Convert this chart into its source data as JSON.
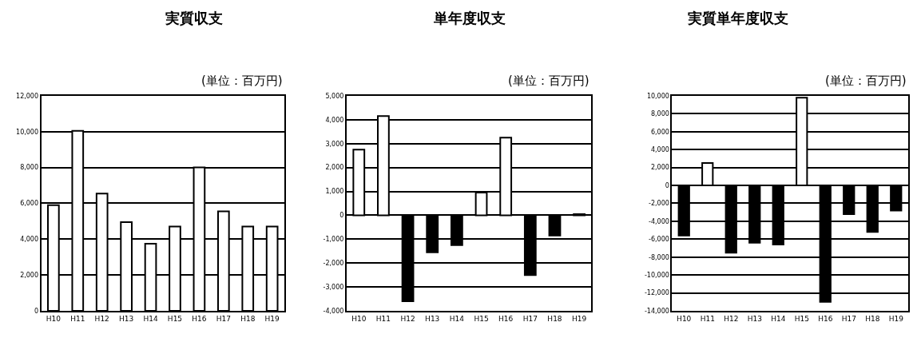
{
  "chart_data": [
    {
      "type": "bar",
      "title": "実質収支",
      "annotations": [
        "(単位：百万円)"
      ],
      "categories": [
        "H10",
        "H11",
        "H12",
        "H13",
        "H14",
        "H15",
        "H16",
        "H17",
        "H18",
        "H19"
      ],
      "values": [
        5900,
        10050,
        6550,
        4950,
        3750,
        4700,
        8000,
        5550,
        4700,
        4700
      ],
      "colors": [
        "#ffffff",
        "#ffffff",
        "#ffffff",
        "#ffffff",
        "#ffffff",
        "#ffffff",
        "#ffffff",
        "#ffffff",
        "#ffffff",
        "#ffffff"
      ],
      "ylim": [
        0,
        12000
      ],
      "yticks": [
        {
          "value": 0,
          "label": "0"
        },
        {
          "value": 2000,
          "label": "2,000"
        },
        {
          "value": 4000,
          "label": "4,000"
        },
        {
          "value": 6000,
          "label": "6,000"
        },
        {
          "value": 8000,
          "label": "8,000"
        },
        {
          "value": 10000,
          "label": "10,000"
        },
        {
          "value": 12000,
          "label": "12,000"
        }
      ],
      "grid": "y"
    },
    {
      "type": "bar",
      "title": "単年度収支",
      "annotations": [
        "(単位：百万円)"
      ],
      "categories": [
        "H10",
        "H11",
        "H12",
        "H13",
        "H14",
        "H15",
        "H16",
        "H17",
        "H18",
        "H19"
      ],
      "values": [
        2750,
        4150,
        -3600,
        -1550,
        -1250,
        950,
        3250,
        -2500,
        -850,
        50
      ],
      "colors": [
        "#ffffff",
        "#ffffff",
        "#000000",
        "#000000",
        "#000000",
        "#ffffff",
        "#ffffff",
        "#000000",
        "#000000",
        "#ffffff"
      ],
      "ylim": [
        -4000,
        5000
      ],
      "yticks": [
        {
          "value": -4000,
          "label": "-4,000"
        },
        {
          "value": -3000,
          "label": "-3,000"
        },
        {
          "value": -2000,
          "label": "-2,000"
        },
        {
          "value": -1000,
          "label": "-1,000"
        },
        {
          "value": 0,
          "label": "0"
        },
        {
          "value": 1000,
          "label": "1,000"
        },
        {
          "value": 2000,
          "label": "2,000"
        },
        {
          "value": 3000,
          "label": "3,000"
        },
        {
          "value": 4000,
          "label": "4,000"
        },
        {
          "value": 5000,
          "label": "5,000"
        }
      ],
      "grid": "y"
    },
    {
      "type": "bar",
      "title": "実質単年度収支",
      "annotations": [
        "(単位：百万円)"
      ],
      "categories": [
        "H10",
        "H11",
        "H12",
        "H13",
        "H14",
        "H15",
        "H16",
        "H17",
        "H18",
        "H19"
      ],
      "values": [
        -5600,
        2500,
        -7500,
        -6400,
        -6600,
        9800,
        -13000,
        -3200,
        -5200,
        -2800
      ],
      "colors": [
        "#000000",
        "#ffffff",
        "#000000",
        "#000000",
        "#000000",
        "#ffffff",
        "#000000",
        "#000000",
        "#000000",
        "#000000"
      ],
      "ylim": [
        -14000,
        10000
      ],
      "yticks": [
        {
          "value": -14000,
          "label": "-14,000"
        },
        {
          "value": -12000,
          "label": "-12,000"
        },
        {
          "value": -10000,
          "label": "-10,000"
        },
        {
          "value": -8000,
          "label": "-8,000"
        },
        {
          "value": -6000,
          "label": "-6,000"
        },
        {
          "value": -4000,
          "label": "-4,000"
        },
        {
          "value": -2000,
          "label": "-2,000"
        },
        {
          "value": 0,
          "label": "0"
        },
        {
          "value": 2000,
          "label": "2,000"
        },
        {
          "value": 4000,
          "label": "4,000"
        },
        {
          "value": 6000,
          "label": "6,000"
        },
        {
          "value": 8000,
          "label": "8,000"
        },
        {
          "value": 10000,
          "label": "10,000"
        }
      ],
      "grid": "y"
    }
  ]
}
